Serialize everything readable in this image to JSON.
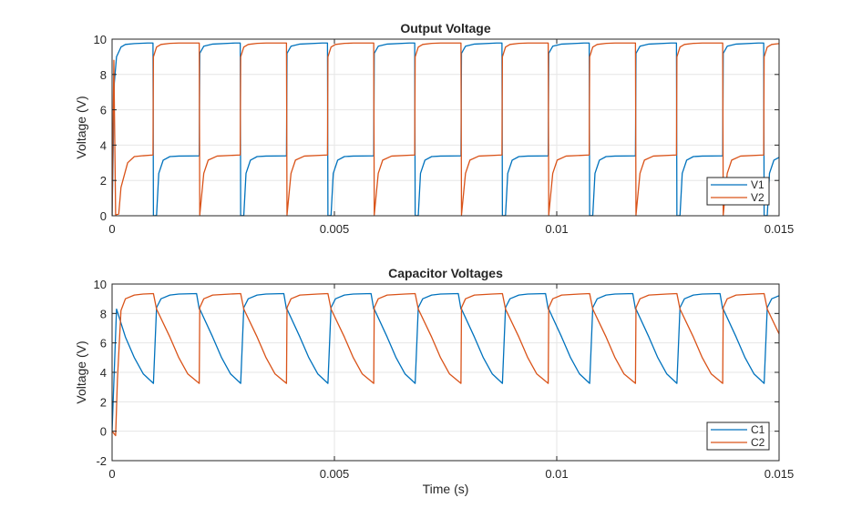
{
  "colors": {
    "series1": "#0072BD",
    "series2": "#D95319",
    "grid": "#e6e6e6",
    "axis": "#262626"
  },
  "chart_data": [
    {
      "type": "line",
      "title": "Output Voltage",
      "xlabel": "",
      "ylabel": "Voltage (V)",
      "xlim": [
        0,
        0.015
      ],
      "ylim": [
        0,
        10
      ],
      "xticks": [
        0,
        0.005,
        0.01,
        0.015
      ],
      "xtick_labels": [
        "0",
        "0.005",
        "0.01",
        "0.015"
      ],
      "yticks": [
        0,
        2,
        4,
        6,
        8,
        10
      ],
      "ytick_labels": [
        "0",
        "2",
        "4",
        "6",
        "8",
        "10"
      ],
      "grid": true,
      "legend": "bottom-right",
      "period": 0.001962,
      "series": [
        {
          "name": "V1",
          "x": [
            0,
            5e-05,
            0.0001,
            0.0002,
            0.0003,
            0.0005,
            0.0008,
            0.00092,
            0.00093,
            0.001,
            0.00105,
            0.00115,
            0.0013,
            0.0015,
            0.0019,
            0.00196
          ],
          "y": [
            0,
            7.5,
            9.0,
            9.55,
            9.7,
            9.75,
            9.78,
            9.78,
            0.0,
            0.02,
            2.4,
            3.15,
            3.35,
            3.38,
            3.39,
            3.39
          ]
        },
        {
          "name": "V2",
          "x": [
            0,
            4e-05,
            8e-05,
            0.00015,
            0.0002,
            0.00035,
            0.0005,
            0.0007,
            0.00092,
            0.00093,
            0.001,
            0.0011,
            0.0013,
            0.0015,
            0.0019,
            0.00196
          ],
          "y": [
            0,
            8.8,
            0.05,
            0.1,
            1.6,
            3.0,
            3.35,
            3.4,
            3.44,
            9.0,
            9.55,
            9.7,
            9.76,
            9.78,
            9.78,
            9.78
          ]
        }
      ]
    },
    {
      "type": "line",
      "title": "Capacitor Voltages",
      "xlabel": "Time (s)",
      "ylabel": "Voltage (V)",
      "xlim": [
        0,
        0.015
      ],
      "ylim": [
        -2,
        10
      ],
      "xticks": [
        0,
        0.005,
        0.01,
        0.015
      ],
      "xtick_labels": [
        "0",
        "0.005",
        "0.01",
        "0.015"
      ],
      "yticks": [
        -2,
        0,
        2,
        4,
        6,
        8,
        10
      ],
      "ytick_labels": [
        "-2",
        "0",
        "2",
        "4",
        "6",
        "8",
        "10"
      ],
      "grid": true,
      "legend": "bottom-right",
      "period": 0.001962,
      "series": [
        {
          "name": "C1",
          "x": [
            0,
            0.0001,
            0.0003,
            0.0005,
            0.0007,
            0.00093,
            0.001,
            0.0011,
            0.0013,
            0.0015,
            0.0019,
            0.00196
          ],
          "y": [
            0,
            8.3,
            6.4,
            5.0,
            3.9,
            3.25,
            8.4,
            9.0,
            9.25,
            9.32,
            9.35,
            8.3
          ]
        },
        {
          "name": "C2",
          "x": [
            0,
            8e-05,
            0.00012,
            0.0002,
            0.0003,
            0.0005,
            0.0007,
            0.00093,
            0.001,
            0.0013,
            0.0015,
            0.0017,
            0.00196
          ],
          "y": [
            0,
            -0.3,
            3.5,
            8.2,
            9.0,
            9.25,
            9.32,
            9.35,
            8.3,
            6.4,
            5.0,
            3.9,
            3.25
          ]
        }
      ]
    }
  ]
}
